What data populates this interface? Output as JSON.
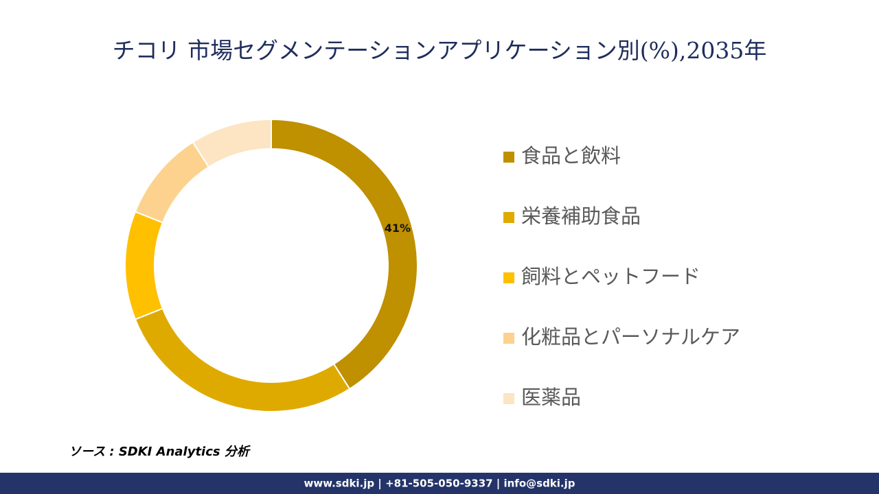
{
  "chart_data": {
    "type": "donut",
    "title": "チコリ 市場セグメンテーションアプリケーション別(%),2035年",
    "categories": [
      "食品と飲料",
      "栄養補助食品",
      "飼料とペットフード",
      "化粧品とパーソナルケア",
      "医薬品"
    ],
    "values": [
      41,
      28,
      12,
      10,
      9
    ],
    "value_labels": [
      "41%",
      null,
      null,
      null,
      null
    ],
    "colors": [
      "#bf9000",
      "#dfaa00",
      "#ffc000",
      "#fcd28e",
      "#fde4c2"
    ],
    "legend": "right"
  },
  "source": "ソース : SDKI Analytics 分析",
  "footer": "www.sdki.jp | +81-505-050-9337 | info@sdki.jp"
}
